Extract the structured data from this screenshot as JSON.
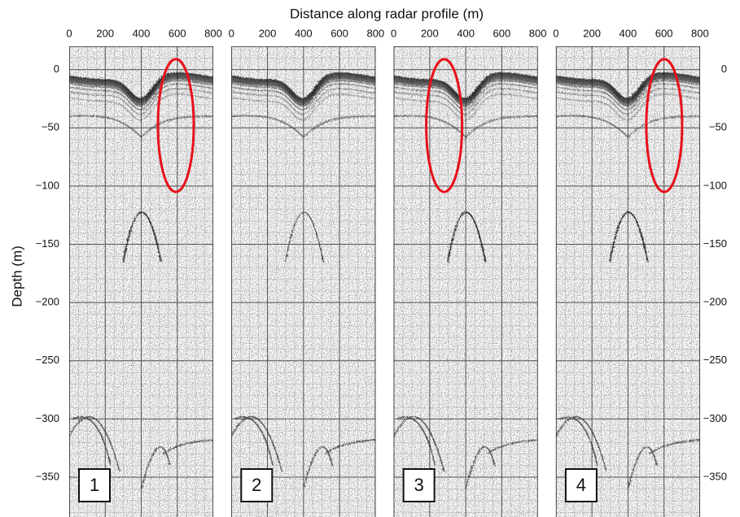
{
  "chart_data": {
    "type": "radargram",
    "x_label": "Distance along radar profile (m)",
    "y_label": "Depth (m)",
    "panels": [
      "1",
      "2",
      "3",
      "4"
    ],
    "xlim": [
      0,
      800
    ],
    "xticks": [
      0,
      200,
      400,
      600,
      800
    ],
    "ylim": [
      -380,
      20
    ],
    "yticks": [
      {
        "value": -350,
        "label": "−350"
      },
      {
        "value": -300,
        "label": "−300"
      },
      {
        "value": -250,
        "label": "−250"
      },
      {
        "value": -200,
        "label": "−200"
      },
      {
        "value": -150,
        "label": "−150"
      },
      {
        "value": -100,
        "label": "−100"
      },
      {
        "value": -50,
        "label": "−50"
      },
      0
    ],
    "grid": true,
    "highlight_color": "#e8101a"
  }
}
